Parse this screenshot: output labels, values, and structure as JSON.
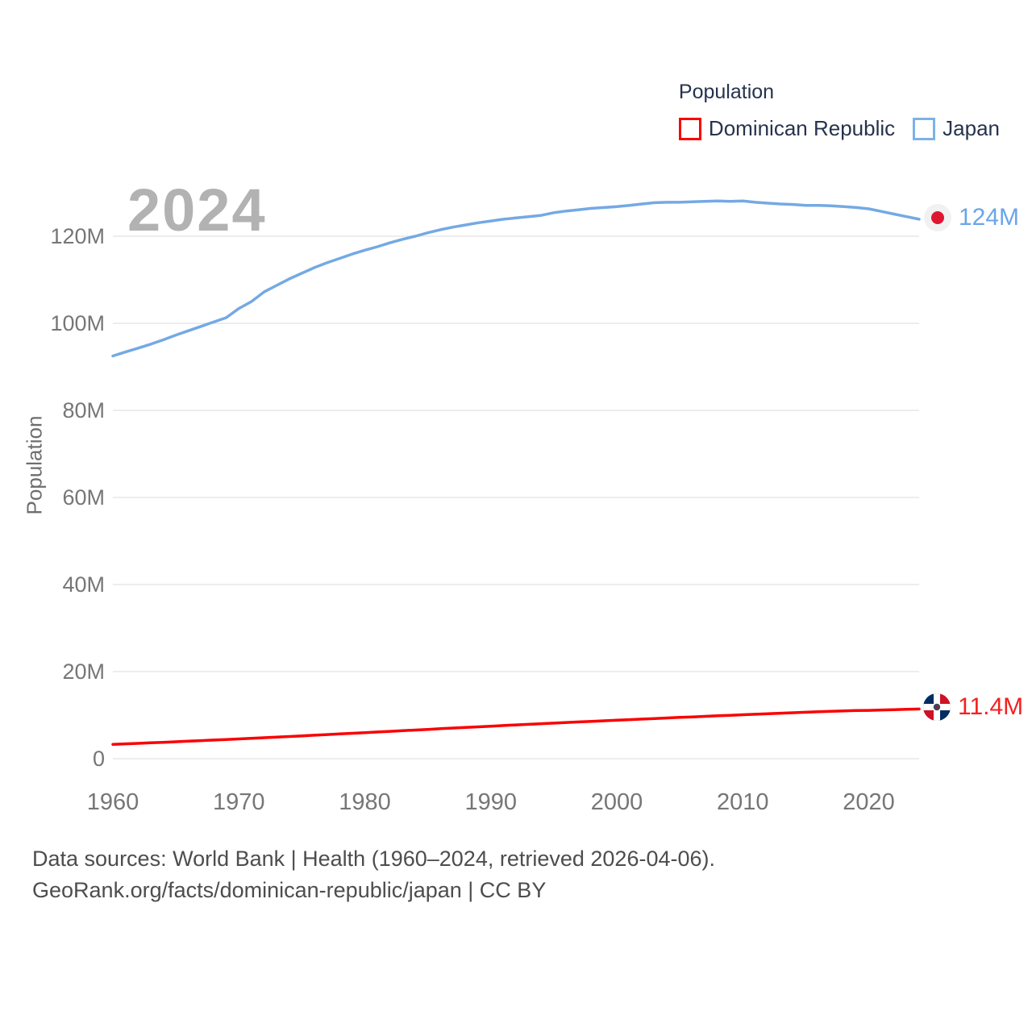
{
  "watermark": "2024",
  "legend": {
    "title": "Population",
    "items": [
      {
        "label": "Dominican Republic",
        "swatch_color": "#fa0000"
      },
      {
        "label": "Japan",
        "swatch_color": "#7db1e8"
      }
    ]
  },
  "axes": {
    "y_title": "Population",
    "y_ticks": [
      {
        "value": 0,
        "label": "0"
      },
      {
        "value": 20,
        "label": "20M"
      },
      {
        "value": 40,
        "label": "40M"
      },
      {
        "value": 60,
        "label": "60M"
      },
      {
        "value": 80,
        "label": "80M"
      },
      {
        "value": 100,
        "label": "100M"
      },
      {
        "value": 120,
        "label": "120M"
      }
    ],
    "x_ticks": [
      {
        "value": 1960,
        "label": "1960"
      },
      {
        "value": 1970,
        "label": "1970"
      },
      {
        "value": 1980,
        "label": "1980"
      },
      {
        "value": 1990,
        "label": "1990"
      },
      {
        "value": 2000,
        "label": "2000"
      },
      {
        "value": 2010,
        "label": "2010"
      },
      {
        "value": 2020,
        "label": "2020"
      }
    ]
  },
  "end_labels": {
    "japan": {
      "value": "124M",
      "color": "#6aa5e8",
      "flag": "japan-flag"
    },
    "dominican_republic": {
      "value": "11.4M",
      "color": "#f42020",
      "flag": "dominican-republic-flag"
    }
  },
  "footer": {
    "line1": "Data sources: World Bank | Health (1960–2024, retrieved 2026-04-06).",
    "line2": "GeoRank.org/facts/dominican-republic/japan | CC BY"
  },
  "chart_data": {
    "type": "line",
    "title": "2024",
    "xlabel": "",
    "ylabel": "Population",
    "x_range": [
      1960,
      2024
    ],
    "ylim": [
      0,
      130
    ],
    "grid": true,
    "legend_position": "top-right",
    "years": [
      1960,
      1961,
      1962,
      1963,
      1964,
      1965,
      1966,
      1967,
      1968,
      1969,
      1970,
      1971,
      1972,
      1973,
      1974,
      1975,
      1976,
      1977,
      1978,
      1979,
      1980,
      1981,
      1982,
      1983,
      1984,
      1985,
      1986,
      1987,
      1988,
      1989,
      1990,
      1991,
      1992,
      1993,
      1994,
      1995,
      1996,
      1997,
      1998,
      1999,
      2000,
      2001,
      2002,
      2003,
      2004,
      2005,
      2006,
      2007,
      2008,
      2009,
      2010,
      2011,
      2012,
      2013,
      2014,
      2015,
      2016,
      2017,
      2018,
      2019,
      2020,
      2021,
      2022,
      2023,
      2024
    ],
    "series": [
      {
        "name": "Dominican Republic",
        "color": "#fa0000",
        "end_label": "11.4M",
        "values": [
          3.29,
          3.41,
          3.52,
          3.64,
          3.76,
          3.89,
          4.01,
          4.14,
          4.27,
          4.4,
          4.54,
          4.67,
          4.81,
          4.95,
          5.1,
          5.24,
          5.39,
          5.53,
          5.68,
          5.83,
          5.98,
          6.13,
          6.28,
          6.43,
          6.58,
          6.73,
          6.88,
          7.03,
          7.18,
          7.32,
          7.47,
          7.61,
          7.75,
          7.89,
          8.03,
          8.17,
          8.31,
          8.44,
          8.58,
          8.71,
          8.84,
          8.97,
          9.1,
          9.23,
          9.36,
          9.48,
          9.6,
          9.73,
          9.85,
          9.97,
          10.09,
          10.21,
          10.33,
          10.45,
          10.56,
          10.67,
          10.78,
          10.88,
          10.98,
          11.05,
          11.1,
          11.18,
          11.26,
          11.33,
          11.4
        ]
      },
      {
        "name": "Japan",
        "color": "#74a9e3",
        "end_label": "124M",
        "values": [
          92.5,
          93.4,
          94.3,
          95.2,
          96.2,
          97.3,
          98.3,
          99.3,
          100.3,
          101.3,
          103.4,
          105.0,
          107.2,
          108.7,
          110.2,
          111.5,
          112.8,
          113.9,
          114.9,
          115.9,
          116.8,
          117.6,
          118.5,
          119.3,
          120.0,
          120.8,
          121.5,
          122.1,
          122.6,
          123.1,
          123.5,
          123.9,
          124.2,
          124.5,
          124.8,
          125.4,
          125.8,
          126.1,
          126.4,
          126.6,
          126.8,
          127.1,
          127.4,
          127.7,
          127.8,
          127.8,
          127.9,
          128.0,
          128.1,
          128.0,
          128.1,
          127.8,
          127.6,
          127.4,
          127.3,
          127.1,
          127.1,
          127.0,
          126.8,
          126.6,
          126.3,
          125.7,
          125.1,
          124.5,
          123.9
        ]
      }
    ]
  }
}
